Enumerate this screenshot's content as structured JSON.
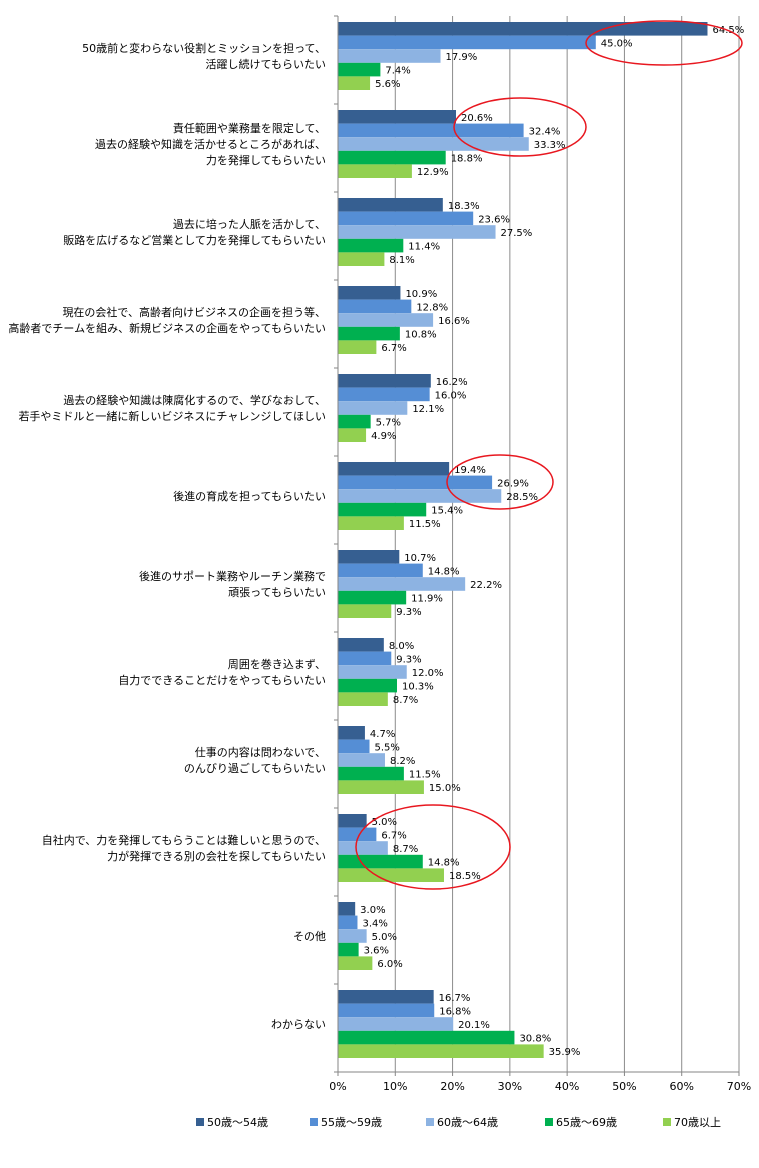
{
  "chart_data": {
    "type": "bar",
    "orientation": "horizontal",
    "categories": [
      [
        "50歳前と変わらない役割とミッションを担って、",
        "活躍し続けてもらいたい"
      ],
      [
        "責任範囲や業務量を限定して、",
        "過去の経験や知識を活かせるところがあれば、",
        "力を発揮してもらいたい"
      ],
      [
        "過去に培った人脈を活かして、",
        "販路を広げるなど営業として力を発揮してもらいたい"
      ],
      [
        "現在の会社で、高齢者向けビジネスの企画を担う等、",
        "高齢者でチームを組み、新規ビジネスの企画をやってもらいたい"
      ],
      [
        "過去の経験や知識は陳腐化するので、学びなおして、",
        "若手やミドルと一緒に新しいビジネスにチャレンジしてほしい"
      ],
      [
        "後進の育成を担ってもらいたい"
      ],
      [
        "後進のサポート業務やルーチン業務で",
        "頑張ってもらいたい"
      ],
      [
        "周囲を巻き込まず、",
        "自力でできることだけをやってもらいたい"
      ],
      [
        "仕事の内容は問わないで、",
        "のんびり過ごしてもらいたい"
      ],
      [
        "自社内で、力を発揮してもらうことは難しいと思うので、",
        "力が発揮できる別の会社を探してもらいたい"
      ],
      [
        "その他"
      ],
      [
        "わからない"
      ]
    ],
    "series": [
      {
        "name": "50歳～54歳",
        "color": "#365f91",
        "values": [
          64.5,
          20.6,
          18.3,
          10.9,
          16.2,
          19.4,
          10.7,
          8.0,
          4.7,
          5.0,
          3.0,
          16.7
        ]
      },
      {
        "name": "55歳～59歳",
        "color": "#558ed5",
        "values": [
          45.0,
          32.4,
          23.6,
          12.8,
          16.0,
          26.9,
          14.8,
          9.3,
          5.5,
          6.7,
          3.4,
          16.8
        ]
      },
      {
        "name": "60歳～64歳",
        "color": "#8db3e2",
        "values": [
          17.9,
          33.3,
          27.5,
          16.6,
          12.1,
          28.5,
          22.2,
          12.0,
          8.2,
          8.7,
          5.0,
          20.1
        ]
      },
      {
        "name": "65歳～69歳",
        "color": "#00b050",
        "values": [
          7.4,
          18.8,
          11.4,
          10.8,
          5.7,
          15.4,
          11.9,
          10.3,
          11.5,
          14.8,
          3.6,
          30.8
        ]
      },
      {
        "name": "70歳以上",
        "color": "#92d050",
        "values": [
          5.6,
          12.9,
          8.1,
          6.7,
          4.9,
          11.5,
          9.3,
          8.7,
          15.0,
          18.5,
          6.0,
          35.9
        ]
      }
    ],
    "value_labels": [
      [
        "64.5%",
        "20.6%",
        "18.3%",
        "10.9%",
        "16.2%",
        "19.4%",
        "10.7%",
        "8.0%",
        "4.7%",
        "5.0%",
        "3.0%",
        "16.7%"
      ],
      [
        "45.0%",
        "32.4%",
        "23.6%",
        "12.8%",
        "16.0%",
        "26.9%",
        "14.8%",
        "9.3%",
        "5.5%",
        "6.7%",
        "3.4%",
        "16.8%"
      ],
      [
        "17.9%",
        "33.3%",
        "27.5%",
        "16.6%",
        "12.1%",
        "28.5%",
        "22.2%",
        "12.0%",
        "8.2%",
        "8.7%",
        "5.0%",
        "20.1%"
      ],
      [
        "7.4%",
        "18.8%",
        "11.4%",
        "10.8%",
        "5.7%",
        "15.4%",
        "11.9%",
        "10.3%",
        "11.5%",
        "14.8%",
        "3.6%",
        "30.8%"
      ],
      [
        "5.6%",
        "12.9%",
        "8.1%",
        "6.7%",
        "4.9%",
        "11.5%",
        "9.3%",
        "8.7%",
        "15.0%",
        "18.5%",
        "6.0%",
        "35.9%"
      ]
    ],
    "xlim": [
      0,
      70
    ],
    "xticks": [
      0,
      10,
      20,
      30,
      40,
      50,
      60,
      70
    ],
    "xtick_labels": [
      "0%",
      "10%",
      "20%",
      "30%",
      "40%",
      "50%",
      "60%",
      "70%"
    ],
    "grid": true,
    "legend_position": "bottom",
    "highlight_color": "#e8171f",
    "highlight_ovals": [
      0,
      1,
      5,
      9
    ],
    "title": "",
    "xlabel": "",
    "ylabel": ""
  }
}
